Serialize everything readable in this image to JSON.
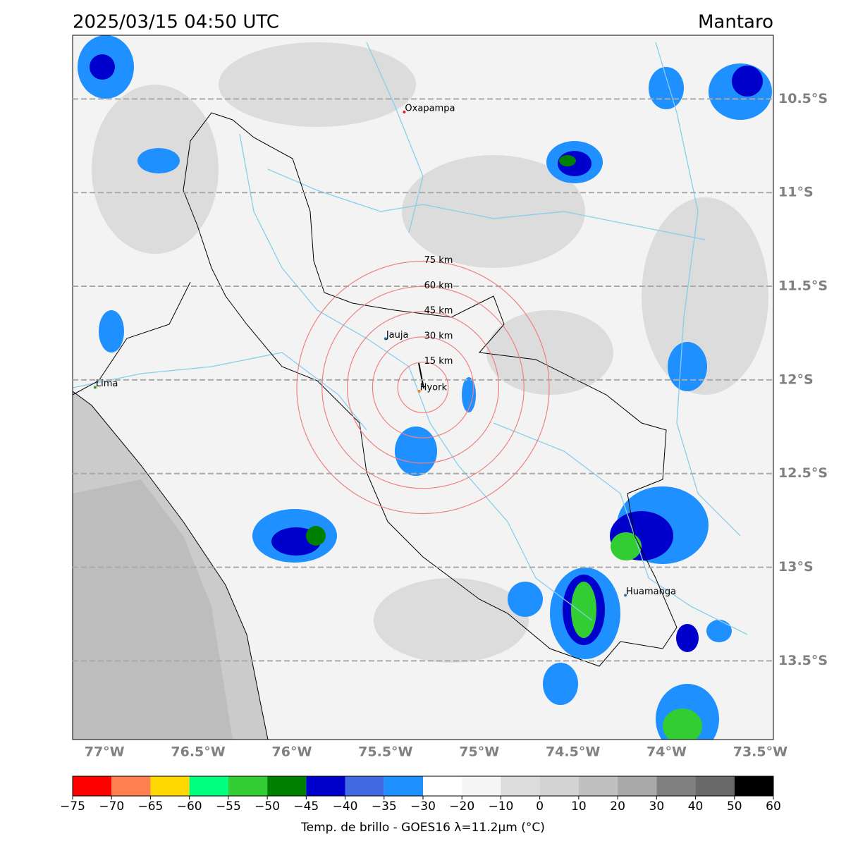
{
  "header": {
    "title": "2025/03/15 04:50 UTC",
    "region": "Mantaro"
  },
  "map": {
    "lon_range": [
      -77.17,
      -73.43
    ],
    "lat_range": [
      -10.16,
      -13.92
    ],
    "grid": "lat",
    "lon_ticks": [
      {
        "value": -77,
        "label": "77°W"
      },
      {
        "value": -76.5,
        "label": "76.5°W"
      },
      {
        "value": -76,
        "label": "76°W"
      },
      {
        "value": -75.5,
        "label": "75.5°W"
      },
      {
        "value": -75,
        "label": "75°W"
      },
      {
        "value": -74.5,
        "label": "74.5°W"
      },
      {
        "value": -74,
        "label": "74°W"
      },
      {
        "value": -73.5,
        "label": "73.5°W"
      }
    ],
    "lat_ticks": [
      {
        "value": -10.5,
        "label": "10.5°S"
      },
      {
        "value": -11,
        "label": "11°S"
      },
      {
        "value": -11.5,
        "label": "11.5°S"
      },
      {
        "value": -12,
        "label": "12°S"
      },
      {
        "value": -12.5,
        "label": "12.5°S"
      },
      {
        "value": -13,
        "label": "13°S"
      },
      {
        "value": -13.5,
        "label": "13.5°S"
      }
    ]
  },
  "cities": [
    {
      "name": "Oxapampa",
      "lon": -75.4,
      "lat": -10.57,
      "color": "#d62728"
    },
    {
      "name": "Jauja",
      "lon": -75.5,
      "lat": -11.78,
      "color": "#1f77b4"
    },
    {
      "name": "Lima",
      "lon": -77.05,
      "lat": -12.04,
      "color": "#2ca02c"
    },
    {
      "name": "Hyork",
      "lon": -75.32,
      "lat": -12.06,
      "color": "#ff7f0e"
    },
    {
      "name": "Huamanga",
      "lon": -74.22,
      "lat": -13.15,
      "color": "#1f77b4"
    }
  ],
  "range_rings": {
    "center": [
      -75.3,
      -12.04
    ],
    "color": "#f08080",
    "rings": [
      {
        "value": 15,
        "label": "15 km"
      },
      {
        "value": 30,
        "label": "30 km"
      },
      {
        "value": 45,
        "label": "45 km"
      },
      {
        "value": 60,
        "label": "60 km"
      },
      {
        "value": 75,
        "label": "75 km"
      }
    ]
  },
  "colorbar": {
    "bounds": [
      {
        "value": -75,
        "label": "−75"
      },
      {
        "value": -70,
        "label": "−70"
      },
      {
        "value": -65,
        "label": "−65"
      },
      {
        "value": -60,
        "label": "−60"
      },
      {
        "value": -55,
        "label": "−55"
      },
      {
        "value": -50,
        "label": "−50"
      },
      {
        "value": -45,
        "label": "−45"
      },
      {
        "value": -40,
        "label": "−40"
      },
      {
        "value": -35,
        "label": "−35"
      },
      {
        "value": -30,
        "label": "−30"
      },
      {
        "value": -20,
        "label": "−20"
      },
      {
        "value": -10,
        "label": "−10"
      },
      0,
      10,
      20,
      30,
      40,
      50,
      60
    ],
    "colors": [
      "#ff0000",
      "#ff7f50",
      "#ffd700",
      "#00ff7f",
      "#32cd32",
      "#008000",
      "#0000cd",
      "#4169e1",
      "#1e90ff",
      "#ffffff",
      "#f5f5f5",
      "#dcdcdc",
      "#d3d3d3",
      "#c0c0c0",
      "#a9a9a9",
      "#808080",
      "#696969",
      "#000000"
    ],
    "label": "Temp. de brillo - GOES16 λ=11.2μm (°C)"
  }
}
